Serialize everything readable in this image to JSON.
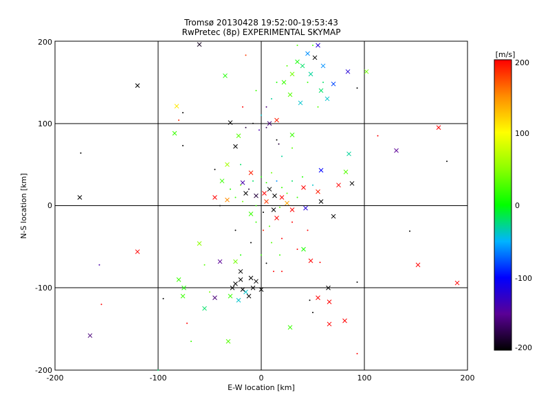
{
  "chart_data": {
    "type": "scatter",
    "title": "Tromsø 20130428 19:52:00-19:53:43",
    "subtitle": "RwPretec (8p) EXPERIMENTAL SKYMAP",
    "xlabel": "E-W location [km]",
    "ylabel": "N-S location [km]",
    "xlim": [
      -200,
      200
    ],
    "ylim": [
      -200,
      200
    ],
    "x_ticks": [
      "-200",
      "-100",
      "0",
      "100",
      "200"
    ],
    "y_ticks": [
      "-200",
      "-100",
      "0",
      "100",
      "200"
    ],
    "grid": true,
    "colorbar": {
      "label": "[m/s]",
      "range": [
        -200,
        200
      ],
      "ticks": [
        "-200",
        "-100",
        "0",
        "100",
        "200"
      ],
      "placement": "right"
    },
    "marker_types": [
      "x",
      "dot"
    ],
    "points": [
      {
        "x": -60,
        "y": 196,
        "v": -190,
        "m": "x"
      },
      {
        "x": -120,
        "y": 146,
        "v": -200,
        "m": "x"
      },
      {
        "x": -82,
        "y": 121,
        "v": 110,
        "m": "x"
      },
      {
        "x": -35,
        "y": 158,
        "v": 10,
        "m": "x"
      },
      {
        "x": -30,
        "y": 101,
        "v": -200,
        "m": "x"
      },
      {
        "x": -84,
        "y": 88,
        "v": 20,
        "m": "x"
      },
      {
        "x": -175,
        "y": 64,
        "v": -200,
        "m": "dot"
      },
      {
        "x": -176,
        "y": 10,
        "v": -200,
        "m": "x"
      },
      {
        "x": -45,
        "y": 44,
        "v": -200,
        "m": "dot"
      },
      {
        "x": -33,
        "y": 50,
        "v": 60,
        "m": "x"
      },
      {
        "x": -25,
        "y": 72,
        "v": -200,
        "m": "x"
      },
      {
        "x": -22,
        "y": 85,
        "v": 30,
        "m": "x"
      },
      {
        "x": -76,
        "y": 113,
        "v": -200,
        "m": "dot"
      },
      {
        "x": -80,
        "y": 104,
        "v": 185,
        "m": "dot"
      },
      {
        "x": -76,
        "y": 73,
        "v": -200,
        "m": "dot"
      },
      {
        "x": 8,
        "y": 100,
        "v": -160,
        "m": "x"
      },
      {
        "x": 15,
        "y": 104,
        "v": 190,
        "m": "x"
      },
      {
        "x": 5,
        "y": 95,
        "v": -170,
        "m": "dot"
      },
      {
        "x": 22,
        "y": 150,
        "v": 20,
        "m": "x"
      },
      {
        "x": 30,
        "y": 160,
        "v": 40,
        "m": "x"
      },
      {
        "x": 40,
        "y": 170,
        "v": -20,
        "m": "x"
      },
      {
        "x": 45,
        "y": 185,
        "v": -60,
        "m": "x"
      },
      {
        "x": 52,
        "y": 180,
        "v": -200,
        "m": "x"
      },
      {
        "x": 55,
        "y": 195,
        "v": -120,
        "m": "x"
      },
      {
        "x": 60,
        "y": 170,
        "v": -60,
        "m": "x"
      },
      {
        "x": 70,
        "y": 148,
        "v": -80,
        "m": "x"
      },
      {
        "x": 84,
        "y": 163,
        "v": -120,
        "m": "x"
      },
      {
        "x": 102,
        "y": 163,
        "v": 40,
        "m": "x"
      },
      {
        "x": 93,
        "y": 143,
        "v": -200,
        "m": "dot"
      },
      {
        "x": 28,
        "y": 135,
        "v": 30,
        "m": "x"
      },
      {
        "x": 38,
        "y": 125,
        "v": -40,
        "m": "x"
      },
      {
        "x": 35,
        "y": 175,
        "v": 5,
        "m": "x"
      },
      {
        "x": 48,
        "y": 160,
        "v": -30,
        "m": "x"
      },
      {
        "x": 58,
        "y": 140,
        "v": -20,
        "m": "x"
      },
      {
        "x": 64,
        "y": 130,
        "v": -40,
        "m": "x"
      },
      {
        "x": 30,
        "y": 86,
        "v": 20,
        "m": "x"
      },
      {
        "x": -15,
        "y": 183,
        "v": 180,
        "m": "dot"
      },
      {
        "x": -18,
        "y": 120,
        "v": 200,
        "m": "dot"
      },
      {
        "x": 172,
        "y": 95,
        "v": 200,
        "m": "x"
      },
      {
        "x": 113,
        "y": 85,
        "v": 200,
        "m": "dot"
      },
      {
        "x": 131,
        "y": 67,
        "v": -150,
        "m": "x"
      },
      {
        "x": 180,
        "y": 54,
        "v": -200,
        "m": "dot"
      },
      {
        "x": 85,
        "y": 63,
        "v": -30,
        "m": "x"
      },
      {
        "x": 82,
        "y": 41,
        "v": 30,
        "m": "x"
      },
      {
        "x": 88,
        "y": 27,
        "v": -200,
        "m": "x"
      },
      {
        "x": 75,
        "y": 25,
        "v": 200,
        "m": "x"
      },
      {
        "x": 58,
        "y": 43,
        "v": -100,
        "m": "x"
      },
      {
        "x": 41,
        "y": 22,
        "v": 200,
        "m": "x"
      },
      {
        "x": 55,
        "y": 17,
        "v": 190,
        "m": "x"
      },
      {
        "x": 58,
        "y": 5,
        "v": -200,
        "m": "x"
      },
      {
        "x": 43,
        "y": -3,
        "v": -120,
        "m": "x"
      },
      {
        "x": 30,
        "y": -5,
        "v": 200,
        "m": "x"
      },
      {
        "x": 15,
        "y": -15,
        "v": 200,
        "m": "x"
      },
      {
        "x": -10,
        "y": -10,
        "v": 20,
        "m": "x"
      },
      {
        "x": -45,
        "y": 10,
        "v": 200,
        "m": "x"
      },
      {
        "x": -33,
        "y": 7,
        "v": 150,
        "m": "x"
      },
      {
        "x": -38,
        "y": 30,
        "v": 20,
        "m": "x"
      },
      {
        "x": -18,
        "y": 28,
        "v": -140,
        "m": "x"
      },
      {
        "x": -10,
        "y": 40,
        "v": 190,
        "m": "x"
      },
      {
        "x": 8,
        "y": 20,
        "v": -200,
        "m": "x"
      },
      {
        "x": 3,
        "y": 15,
        "v": 200,
        "m": "x"
      },
      {
        "x": 13,
        "y": 12,
        "v": -200,
        "m": "x"
      },
      {
        "x": 20,
        "y": 10,
        "v": 200,
        "m": "x"
      },
      {
        "x": 25,
        "y": 3,
        "v": 140,
        "m": "x"
      },
      {
        "x": 12,
        "y": -5,
        "v": -200,
        "m": "x"
      },
      {
        "x": 5,
        "y": 5,
        "v": 180,
        "m": "x"
      },
      {
        "x": -5,
        "y": 12,
        "v": -180,
        "m": "x"
      },
      {
        "x": -15,
        "y": 15,
        "v": -200,
        "m": "x"
      },
      {
        "x": 70,
        "y": -13,
        "v": -200,
        "m": "x"
      },
      {
        "x": 45,
        "y": -30,
        "v": 200,
        "m": "dot"
      },
      {
        "x": 35,
        "y": -53,
        "v": 200,
        "m": "dot"
      },
      {
        "x": 41,
        "y": -53,
        "v": 10,
        "m": "x"
      },
      {
        "x": 48,
        "y": -67,
        "v": 200,
        "m": "x"
      },
      {
        "x": 57,
        "y": -69,
        "v": 200,
        "m": "dot"
      },
      {
        "x": 144,
        "y": -31,
        "v": -200,
        "m": "dot"
      },
      {
        "x": 152,
        "y": -72,
        "v": 200,
        "m": "x"
      },
      {
        "x": 190,
        "y": -94,
        "v": 200,
        "m": "x"
      },
      {
        "x": 93,
        "y": -93,
        "v": -200,
        "m": "dot"
      },
      {
        "x": 65,
        "y": -100,
        "v": -200,
        "m": "x"
      },
      {
        "x": 55,
        "y": -112,
        "v": 200,
        "m": "x"
      },
      {
        "x": 66,
        "y": -117,
        "v": 200,
        "m": "x"
      },
      {
        "x": 47,
        "y": -115,
        "v": -200,
        "m": "dot"
      },
      {
        "x": 50,
        "y": -130,
        "v": -200,
        "m": "dot"
      },
      {
        "x": 66,
        "y": -144,
        "v": 200,
        "m": "x"
      },
      {
        "x": 81,
        "y": -140,
        "v": 200,
        "m": "x"
      },
      {
        "x": 28,
        "y": -148,
        "v": 20,
        "m": "x"
      },
      {
        "x": 93,
        "y": -180,
        "v": 200,
        "m": "dot"
      },
      {
        "x": -120,
        "y": -56,
        "v": 200,
        "m": "x"
      },
      {
        "x": -157,
        "y": -72,
        "v": -140,
        "m": "dot"
      },
      {
        "x": -155,
        "y": -120,
        "v": 200,
        "m": "dot"
      },
      {
        "x": -166,
        "y": -158,
        "v": -160,
        "m": "x"
      },
      {
        "x": -95,
        "y": -113,
        "v": -200,
        "m": "dot"
      },
      {
        "x": -60,
        "y": -46,
        "v": 50,
        "m": "x"
      },
      {
        "x": -55,
        "y": -72,
        "v": 30,
        "m": "dot"
      },
      {
        "x": -40,
        "y": -68,
        "v": -150,
        "m": "x"
      },
      {
        "x": -25,
        "y": -68,
        "v": 40,
        "m": "x"
      },
      {
        "x": -20,
        "y": -80,
        "v": -200,
        "m": "x"
      },
      {
        "x": -80,
        "y": -90,
        "v": 20,
        "m": "x"
      },
      {
        "x": -75,
        "y": -100,
        "v": 10,
        "m": "x"
      },
      {
        "x": -76,
        "y": -110,
        "v": 20,
        "m": "x"
      },
      {
        "x": -55,
        "y": -125,
        "v": -20,
        "m": "x"
      },
      {
        "x": -45,
        "y": -112,
        "v": -160,
        "m": "x"
      },
      {
        "x": -30,
        "y": -110,
        "v": 20,
        "m": "x"
      },
      {
        "x": -15,
        "y": -105,
        "v": -40,
        "m": "x"
      },
      {
        "x": -20,
        "y": -90,
        "v": -200,
        "m": "x"
      },
      {
        "x": -25,
        "y": -95,
        "v": -200,
        "m": "x"
      },
      {
        "x": -10,
        "y": -88,
        "v": -200,
        "m": "x"
      },
      {
        "x": -5,
        "y": -92,
        "v": -200,
        "m": "x"
      },
      {
        "x": -28,
        "y": -100,
        "v": -200,
        "m": "x"
      },
      {
        "x": -18,
        "y": -102,
        "v": -200,
        "m": "x"
      },
      {
        "x": -8,
        "y": -100,
        "v": -200,
        "m": "x"
      },
      {
        "x": 0,
        "y": -102,
        "v": -200,
        "m": "x"
      },
      {
        "x": -12,
        "y": -110,
        "v": -200,
        "m": "x"
      },
      {
        "x": -22,
        "y": -115,
        "v": -40,
        "m": "x"
      },
      {
        "x": -32,
        "y": -165,
        "v": 30,
        "m": "x"
      },
      {
        "x": -72,
        "y": -143,
        "v": 200,
        "m": "dot"
      },
      {
        "x": -68,
        "y": -165,
        "v": 20,
        "m": "dot"
      },
      {
        "x": 0,
        "y": -60,
        "v": 20,
        "m": "dot"
      },
      {
        "x": 10,
        "y": -45,
        "v": 30,
        "m": "dot"
      },
      {
        "x": 12,
        "y": -80,
        "v": 200,
        "m": "dot"
      },
      {
        "x": 20,
        "y": -80,
        "v": 200,
        "m": "dot"
      },
      {
        "x": 5,
        "y": -70,
        "v": -200,
        "m": "dot"
      },
      {
        "x": -10,
        "y": -45,
        "v": -200,
        "m": "dot"
      },
      {
        "x": -50,
        "y": -105,
        "v": 40,
        "m": "dot"
      },
      {
        "x": -100,
        "y": -200,
        "v": -20,
        "m": "dot"
      },
      {
        "x": 20,
        "y": -40,
        "v": 200,
        "m": "dot"
      },
      {
        "x": 2,
        "y": -30,
        "v": 190,
        "m": "dot"
      },
      {
        "x": -5,
        "y": -20,
        "v": 20,
        "m": "dot"
      },
      {
        "x": 8,
        "y": -25,
        "v": 30,
        "m": "dot"
      },
      {
        "x": -25,
        "y": -30,
        "v": -200,
        "m": "dot"
      },
      {
        "x": -20,
        "y": -60,
        "v": 10,
        "m": "dot"
      },
      {
        "x": 18,
        "y": -60,
        "v": 20,
        "m": "dot"
      },
      {
        "x": 30,
        "y": -20,
        "v": 200,
        "m": "dot"
      },
      {
        "x": -40,
        "y": 0,
        "v": -200,
        "m": "dot"
      },
      {
        "x": -30,
        "y": 20,
        "v": 10,
        "m": "dot"
      },
      {
        "x": -25,
        "y": 10,
        "v": 20,
        "m": "dot"
      },
      {
        "x": -20,
        "y": 25,
        "v": 40,
        "m": "dot"
      },
      {
        "x": -12,
        "y": 20,
        "v": -180,
        "m": "dot"
      },
      {
        "x": -8,
        "y": 30,
        "v": -20,
        "m": "dot"
      },
      {
        "x": 0,
        "y": 35,
        "v": 10,
        "m": "dot"
      },
      {
        "x": 5,
        "y": 28,
        "v": 20,
        "m": "dot"
      },
      {
        "x": 10,
        "y": 40,
        "v": 40,
        "m": "dot"
      },
      {
        "x": 15,
        "y": 30,
        "v": -60,
        "m": "dot"
      },
      {
        "x": 20,
        "y": 22,
        "v": 20,
        "m": "dot"
      },
      {
        "x": 25,
        "y": 15,
        "v": 30,
        "m": "dot"
      },
      {
        "x": 30,
        "y": 30,
        "v": -20,
        "m": "dot"
      },
      {
        "x": 35,
        "y": 10,
        "v": 20,
        "m": "dot"
      },
      {
        "x": 40,
        "y": 35,
        "v": 10,
        "m": "dot"
      },
      {
        "x": 50,
        "y": 25,
        "v": -40,
        "m": "dot"
      },
      {
        "x": -5,
        "y": 0,
        "v": 20,
        "m": "dot"
      },
      {
        "x": 2,
        "y": -8,
        "v": -200,
        "m": "dot"
      },
      {
        "x": 18,
        "y": -2,
        "v": 30,
        "m": "dot"
      },
      {
        "x": -18,
        "y": 5,
        "v": 40,
        "m": "dot"
      },
      {
        "x": -8,
        "y": 100,
        "v": -200,
        "m": "dot"
      },
      {
        "x": -2,
        "y": 92,
        "v": -140,
        "m": "dot"
      },
      {
        "x": 0,
        "y": 110,
        "v": -40,
        "m": "dot"
      },
      {
        "x": 5,
        "y": 120,
        "v": -160,
        "m": "dot"
      },
      {
        "x": 10,
        "y": 130,
        "v": -30,
        "m": "dot"
      },
      {
        "x": -5,
        "y": 140,
        "v": 20,
        "m": "dot"
      },
      {
        "x": 15,
        "y": 150,
        "v": 10,
        "m": "dot"
      },
      {
        "x": 25,
        "y": 170,
        "v": 30,
        "m": "dot"
      },
      {
        "x": 45,
        "y": 150,
        "v": 20,
        "m": "dot"
      },
      {
        "x": 55,
        "y": 120,
        "v": 30,
        "m": "dot"
      },
      {
        "x": 60,
        "y": 150,
        "v": -20,
        "m": "dot"
      },
      {
        "x": 20,
        "y": 60,
        "v": -30,
        "m": "dot"
      },
      {
        "x": 30,
        "y": 70,
        "v": 30,
        "m": "dot"
      },
      {
        "x": -20,
        "y": 50,
        "v": -20,
        "m": "dot"
      },
      {
        "x": 15,
        "y": 80,
        "v": -200,
        "m": "dot"
      },
      {
        "x": 17,
        "y": 75,
        "v": -180,
        "m": "dot"
      },
      {
        "x": -15,
        "y": 95,
        "v": -180,
        "m": "dot"
      },
      {
        "x": 35,
        "y": 195,
        "v": 30,
        "m": "dot"
      },
      {
        "x": 50,
        "y": 195,
        "v": 20,
        "m": "dot"
      }
    ]
  }
}
